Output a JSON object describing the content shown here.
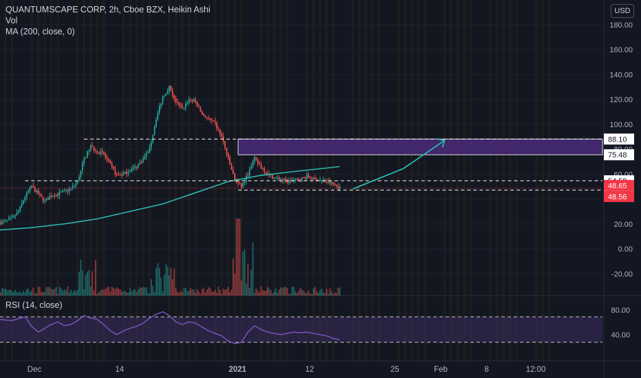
{
  "header": {
    "title": "QUANTUMSCAPE CORP, 2h, Cboe BZX, Heikin Ashi",
    "vol": "Vol",
    "ma": "MA (200, close, 0)",
    "rsi": "RSI (14, close)",
    "currency": "USD"
  },
  "chart_data": {
    "type": "candlestick",
    "price_axis": {
      "ticks": [
        180,
        160,
        140,
        120,
        100,
        80,
        60,
        40,
        20,
        0,
        -20
      ],
      "tick_labels": [
        "180.00",
        "160.00",
        "140.00",
        "120.00",
        "100.00",
        "80.00",
        "60.00",
        "40.00",
        "20.00",
        "0.00",
        "-20.00"
      ]
    },
    "rsi_axis": {
      "ticks": [
        80,
        40
      ],
      "tick_labels": [
        "80.00",
        "40.00"
      ],
      "band": [
        30,
        70
      ]
    },
    "x_labels": [
      {
        "label": "Dec",
        "day": 0
      },
      {
        "label": "14",
        "day": 13
      },
      {
        "label": "2021",
        "day": 31
      },
      {
        "label": "12",
        "day": 42
      },
      {
        "label": "25",
        "day": 55
      },
      {
        "label": "Feb",
        "day": 62
      },
      {
        "label": "8",
        "day": 69
      },
      {
        "label": "12:00",
        "day": 76.5
      }
    ],
    "price_path": [
      {
        "day": -5,
        "p": 21
      },
      {
        "day": -4,
        "p": 22
      },
      {
        "day": -3,
        "p": 24
      },
      {
        "day": -2,
        "p": 30
      },
      {
        "day": -1,
        "p": 42
      },
      {
        "day": 0,
        "p": 50
      },
      {
        "day": 1,
        "p": 44
      },
      {
        "day": 2,
        "p": 38
      },
      {
        "day": 3,
        "p": 43
      },
      {
        "day": 4,
        "p": 44
      },
      {
        "day": 5,
        "p": 46
      },
      {
        "day": 6,
        "p": 48
      },
      {
        "day": 7,
        "p": 54
      },
      {
        "day": 8,
        "p": 72
      },
      {
        "day": 9,
        "p": 82
      },
      {
        "day": 10,
        "p": 78
      },
      {
        "day": 11,
        "p": 76
      },
      {
        "day": 12,
        "p": 67
      },
      {
        "day": 13,
        "p": 59
      },
      {
        "day": 14,
        "p": 60
      },
      {
        "day": 15,
        "p": 63
      },
      {
        "day": 16,
        "p": 66
      },
      {
        "day": 17,
        "p": 72
      },
      {
        "day": 18,
        "p": 80
      },
      {
        "day": 19,
        "p": 105
      },
      {
        "day": 20,
        "p": 122
      },
      {
        "day": 21,
        "p": 130
      },
      {
        "day": 22,
        "p": 118
      },
      {
        "day": 23,
        "p": 112
      },
      {
        "day": 24,
        "p": 120
      },
      {
        "day": 25,
        "p": 118
      },
      {
        "day": 26,
        "p": 108
      },
      {
        "day": 27,
        "p": 104
      },
      {
        "day": 28,
        "p": 100
      },
      {
        "day": 29,
        "p": 90
      },
      {
        "day": 30,
        "p": 72
      },
      {
        "day": 31,
        "p": 55
      },
      {
        "day": 32,
        "p": 50
      },
      {
        "day": 33,
        "p": 60
      },
      {
        "day": 34,
        "p": 72
      },
      {
        "day": 35,
        "p": 66
      },
      {
        "day": 36,
        "p": 60
      },
      {
        "day": 37,
        "p": 57
      },
      {
        "day": 38,
        "p": 56
      },
      {
        "day": 39,
        "p": 54
      },
      {
        "day": 40,
        "p": 55
      },
      {
        "day": 41,
        "p": 56
      },
      {
        "day": 42,
        "p": 58
      },
      {
        "day": 43,
        "p": 56
      },
      {
        "day": 44,
        "p": 55
      },
      {
        "day": 45,
        "p": 54
      },
      {
        "day": 46,
        "p": 52
      },
      {
        "day": 47,
        "p": 49
      }
    ],
    "ma200": [
      {
        "day": -5,
        "p": 15
      },
      {
        "day": 0,
        "p": 17
      },
      {
        "day": 5,
        "p": 20
      },
      {
        "day": 10,
        "p": 24
      },
      {
        "day": 15,
        "p": 30
      },
      {
        "day": 20,
        "p": 36
      },
      {
        "day": 25,
        "p": 45
      },
      {
        "day": 30,
        "p": 54
      },
      {
        "day": 35,
        "p": 59
      },
      {
        "day": 40,
        "p": 62
      },
      {
        "day": 47,
        "p": 66
      }
    ],
    "rsi_path": [
      {
        "day": -5,
        "v": 66
      },
      {
        "day": -3,
        "v": 64
      },
      {
        "day": -1,
        "v": 70
      },
      {
        "day": 0,
        "v": 55
      },
      {
        "day": 1,
        "v": 46
      },
      {
        "day": 2,
        "v": 52
      },
      {
        "day": 3,
        "v": 58
      },
      {
        "day": 4,
        "v": 62
      },
      {
        "day": 5,
        "v": 56
      },
      {
        "day": 6,
        "v": 58
      },
      {
        "day": 7,
        "v": 64
      },
      {
        "day": 8,
        "v": 72
      },
      {
        "day": 9,
        "v": 68
      },
      {
        "day": 10,
        "v": 66
      },
      {
        "day": 11,
        "v": 58
      },
      {
        "day": 12,
        "v": 48
      },
      {
        "day": 13,
        "v": 42
      },
      {
        "day": 14,
        "v": 48
      },
      {
        "day": 15,
        "v": 52
      },
      {
        "day": 16,
        "v": 55
      },
      {
        "day": 17,
        "v": 60
      },
      {
        "day": 18,
        "v": 68
      },
      {
        "day": 19,
        "v": 74
      },
      {
        "day": 20,
        "v": 78
      },
      {
        "day": 21,
        "v": 72
      },
      {
        "day": 22,
        "v": 62
      },
      {
        "day": 23,
        "v": 58
      },
      {
        "day": 24,
        "v": 62
      },
      {
        "day": 25,
        "v": 60
      },
      {
        "day": 26,
        "v": 54
      },
      {
        "day": 27,
        "v": 48
      },
      {
        "day": 28,
        "v": 44
      },
      {
        "day": 29,
        "v": 40
      },
      {
        "day": 30,
        "v": 32
      },
      {
        "day": 31,
        "v": 28
      },
      {
        "day": 32,
        "v": 30
      },
      {
        "day": 33,
        "v": 46
      },
      {
        "day": 34,
        "v": 56
      },
      {
        "day": 35,
        "v": 50
      },
      {
        "day": 36,
        "v": 46
      },
      {
        "day": 37,
        "v": 44
      },
      {
        "day": 38,
        "v": 42
      },
      {
        "day": 39,
        "v": 44
      },
      {
        "day": 40,
        "v": 46
      },
      {
        "day": 41,
        "v": 45
      },
      {
        "day": 42,
        "v": 46
      },
      {
        "day": 43,
        "v": 44
      },
      {
        "day": 44,
        "v": 42
      },
      {
        "day": 45,
        "v": 40
      },
      {
        "day": 46,
        "v": 36
      },
      {
        "day": 47,
        "v": 34
      }
    ],
    "volume_max": 100,
    "drawings": {
      "support_resistance": [
        {
          "label": "88.10",
          "price": 88.1,
          "day_start": 8,
          "style": "dashed"
        },
        {
          "label": "54.59",
          "price": 54.59,
          "day_start": -1,
          "style": "dashed"
        },
        {
          "label": "47.11",
          "price": 47.11,
          "day_start": 31.5,
          "style": "dashed"
        }
      ],
      "zone": {
        "top": 88.1,
        "bottom": 75.48,
        "day_start": 31.5,
        "label": "75.48"
      },
      "current_price": [
        {
          "label": "48.65",
          "price": 48.65
        },
        {
          "label": "48.56",
          "price": 48.56
        }
      ],
      "trend_arrow": {
        "from": {
          "day": 49,
          "price": 48
        },
        "to": {
          "day": 63,
          "price": 87
        }
      }
    },
    "colors": {
      "up": "#26a69a",
      "down": "#ef5350",
      "ma": "#2eb8b0",
      "rsi": "#7e57c2",
      "rsi_band": "#3a2e5c",
      "zone": "#4a2a78",
      "arrow": "#2eb8b0",
      "current_price": "#f23645"
    }
  }
}
